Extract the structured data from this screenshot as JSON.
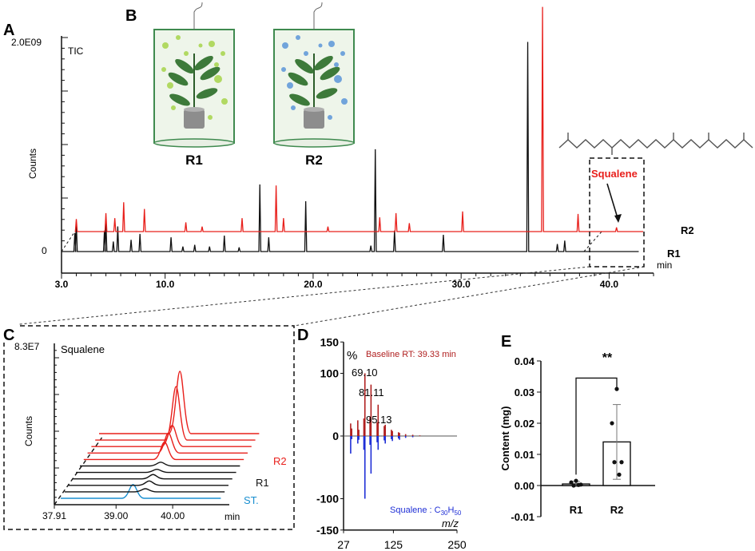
{
  "colors": {
    "r1": "#111111",
    "r2": "#e8201c",
    "standard": "#1a8fd0",
    "baseline": "#b02020",
    "reference": "#1f2fd6",
    "chamber": "#3f8a4f"
  },
  "panel_a": {
    "label": "A",
    "ylabel": "Counts",
    "trace_label": "TIC",
    "ymax_label": "2.0E09",
    "yzero_label": "0",
    "xunit": "min",
    "xticks": [
      "3.0",
      "10.0",
      "20.0",
      "30.0",
      "40.0"
    ],
    "series_r1": "R1",
    "series_r2": "R2",
    "annotation": "Squalene"
  },
  "panel_b": {
    "label": "B",
    "chambers": [
      {
        "name": "R1",
        "particle_color": "#a6d34a"
      },
      {
        "name": "R2",
        "particle_color": "#5b95d8"
      }
    ]
  },
  "panel_c": {
    "label": "C",
    "ymax_label": "8.3E7",
    "ylabel": "Counts",
    "compound": "Squalene",
    "xunit": "min",
    "xticks": [
      "37.91",
      "39.00",
      "40.00"
    ],
    "labels": {
      "r2": "R2",
      "r1": "R1",
      "standard": "ST."
    }
  },
  "panel_d": {
    "label": "D",
    "percent": "%",
    "top_title": "Baseline  RT: 39.33 min",
    "bottom_title_pre": "Squalene : C",
    "sub1": "30",
    "mid": "H",
    "sub2": "50",
    "xlabel": "m/z",
    "yticks": [
      "150",
      "100",
      "0",
      "-100",
      "-150"
    ],
    "xticks": [
      "27",
      "125",
      "250"
    ],
    "peak_labels": [
      "69.10",
      "81.11",
      "95.13"
    ]
  },
  "panel_e": {
    "label": "E",
    "ylabel": "Content (mg)",
    "yticks": [
      "0.04",
      "0.03",
      "0.02",
      "0.01",
      "0.00",
      "-0.01"
    ],
    "categories": [
      "R1",
      "R2"
    ],
    "significance": "**"
  },
  "chart_data": [
    {
      "type": "line",
      "panel": "A",
      "ylabel": "Counts",
      "xlabel": "min",
      "xlim": [
        3.0,
        43.0
      ],
      "ylim": [
        0,
        2000000000.0
      ],
      "series": [
        {
          "name": "R1",
          "peaks": [
            [
              3.9,
              0.22
            ],
            [
              4.0,
              0.35
            ],
            [
              5.9,
              0.25
            ],
            [
              6.0,
              0.35
            ],
            [
              6.5,
              0.12
            ],
            [
              6.8,
              0.3
            ],
            [
              7.7,
              0.14
            ],
            [
              8.3,
              0.21
            ],
            [
              10.4,
              0.17
            ],
            [
              11.2,
              0.06
            ],
            [
              12.0,
              0.08
            ],
            [
              13.0,
              0.06
            ],
            [
              14.0,
              0.19
            ],
            [
              15.0,
              0.05
            ],
            [
              16.4,
              0.8
            ],
            [
              17.0,
              0.17
            ],
            [
              19.5,
              0.6
            ],
            [
              23.9,
              0.07
            ],
            [
              24.2,
              1.22
            ],
            [
              25.5,
              0.25
            ],
            [
              28.8,
              0.2
            ],
            [
              34.5,
              2.5
            ],
            [
              36.5,
              0.09
            ],
            [
              37.0,
              0.13
            ]
          ]
        },
        {
          "name": "R2",
          "peaks": [
            [
              4.0,
              0.15
            ],
            [
              6.0,
              0.22
            ],
            [
              6.6,
              0.16
            ],
            [
              7.2,
              0.35
            ],
            [
              8.6,
              0.27
            ],
            [
              11.4,
              0.11
            ],
            [
              12.5,
              0.06
            ],
            [
              15.2,
              0.16
            ],
            [
              17.5,
              0.55
            ],
            [
              18.0,
              0.16
            ],
            [
              21.0,
              0.06
            ],
            [
              24.5,
              0.17
            ],
            [
              25.6,
              0.22
            ],
            [
              26.5,
              0.1
            ],
            [
              30.1,
              0.24
            ],
            [
              35.5,
              2.68
            ],
            [
              37.9,
              0.21
            ],
            [
              40.5,
              0.05
            ]
          ]
        }
      ]
    },
    {
      "type": "line",
      "panel": "C",
      "xlabel": "min",
      "xlim": [
        37.91,
        41.0
      ],
      "ymax": 83000000.0,
      "traces": [
        {
          "name": "ST.",
          "group": "standard",
          "peak_rt": 39.3,
          "height": 0.22
        },
        {
          "name": "R1",
          "group": "R1",
          "peak_rt": 39.45,
          "height": 0.05
        },
        {
          "name": "R1",
          "group": "R1",
          "peak_rt": 39.45,
          "height": 0.07
        },
        {
          "name": "R1",
          "group": "R1",
          "peak_rt": 39.45,
          "height": 0.07
        },
        {
          "name": "R1",
          "group": "R1",
          "peak_rt": 39.45,
          "height": 0.05
        },
        {
          "name": "R1",
          "group": "R1",
          "peak_rt": 39.45,
          "height": 0.06
        },
        {
          "name": "R2",
          "group": "R2",
          "peak_rt": 39.45,
          "height": 0.28
        },
        {
          "name": "R2",
          "group": "R2",
          "peak_rt": 39.45,
          "height": 0.32
        },
        {
          "name": "R2",
          "group": "R2",
          "peak_rt": 39.45,
          "height": 0.34
        },
        {
          "name": "R2",
          "group": "R2",
          "peak_rt": 39.45,
          "height": 0.86
        },
        {
          "name": "R2",
          "group": "R2",
          "peak_rt": 39.45,
          "height": 1.0
        }
      ]
    },
    {
      "type": "bar",
      "panel": "D",
      "xlabel": "m/z",
      "xlim": [
        27,
        250
      ],
      "ylim": [
        -150,
        150
      ],
      "series": [
        {
          "name": "Baseline",
          "mz": [
            41,
            43,
            55,
            57,
            67,
            69,
            79,
            81,
            93,
            95,
            107,
            109,
            121,
            123,
            135,
            137,
            149,
            163,
            177
          ],
          "intensity": [
            20,
            12,
            25,
            10,
            28,
            100,
            30,
            82,
            22,
            50,
            16,
            18,
            10,
            8,
            6,
            5,
            3,
            2,
            1
          ]
        },
        {
          "name": "Squalene",
          "mz": [
            41,
            43,
            55,
            57,
            67,
            69,
            79,
            81,
            93,
            95,
            107,
            109,
            121,
            123,
            135,
            137,
            149,
            163
          ],
          "intensity": [
            -28,
            -5,
            -12,
            -6,
            -22,
            -100,
            -14,
            -60,
            -10,
            -22,
            -7,
            -12,
            -5,
            -8,
            -4,
            -6,
            -3,
            -2
          ]
        }
      ]
    },
    {
      "type": "bar",
      "panel": "E",
      "ylabel": "Content (mg)",
      "categories": [
        "R1",
        "R2"
      ],
      "values": [
        0.0005,
        0.014
      ],
      "error": [
        0.0008,
        0.012
      ],
      "points": [
        [
          0.0015,
          0.001,
          0.0003,
          0.0,
          0.0002
        ],
        [
          0.031,
          0.02,
          0.0075,
          0.0075,
          0.0035
        ]
      ],
      "ylim": [
        -0.01,
        0.04
      ],
      "significance": "**"
    }
  ]
}
